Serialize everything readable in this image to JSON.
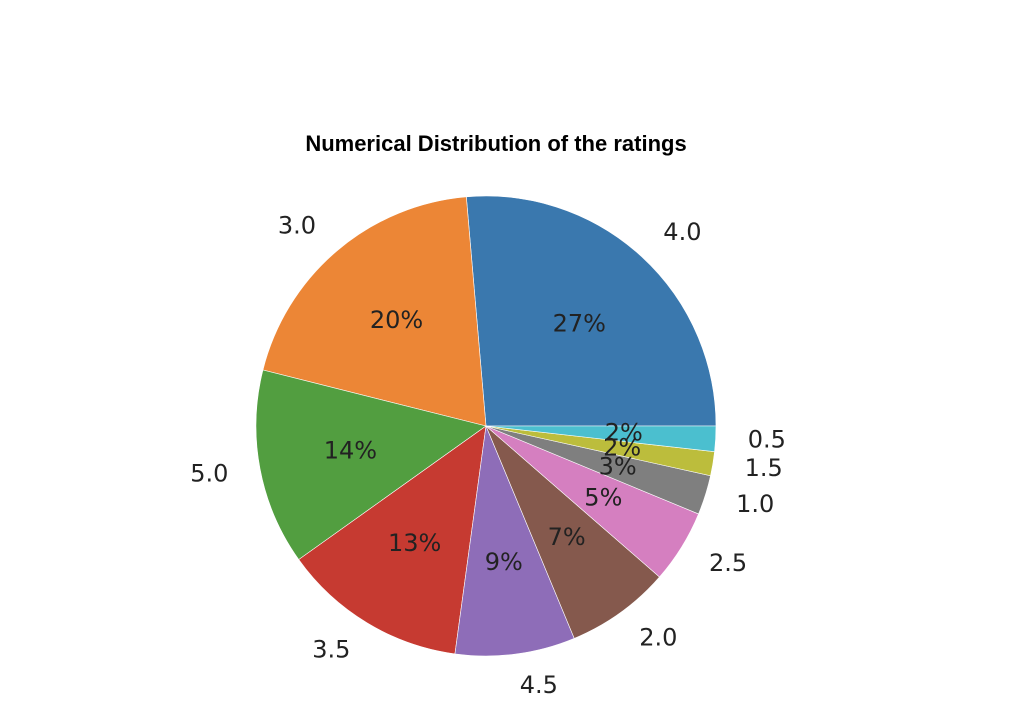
{
  "chart_data": {
    "type": "pie",
    "title": "Numerical Distribution of the ratings",
    "categories": [
      "4.0",
      "3.0",
      "5.0",
      "3.5",
      "4.5",
      "2.0",
      "2.5",
      "1.0",
      "1.5",
      "0.5"
    ],
    "values": [
      26.6,
      19.9,
      13.9,
      13.1,
      8.5,
      7.4,
      5.2,
      2.8,
      1.7,
      1.8
    ],
    "percent_labels": [
      "27%",
      "20%",
      "14%",
      "13%",
      "9%",
      "7%",
      "5%",
      "3%",
      "2%",
      "2%"
    ],
    "colors": [
      "#3a78ae",
      "#ec8636",
      "#529e40",
      "#c63a31",
      "#8e6db8",
      "#85594d",
      "#d57fc0",
      "#7f7f7f",
      "#bcbd3c",
      "#4bbfcf"
    ],
    "start_angle_deg": 0,
    "direction": "counterclockwise",
    "legend": "none"
  }
}
